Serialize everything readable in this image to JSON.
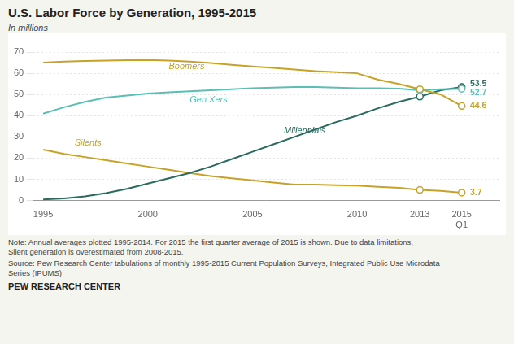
{
  "chart_data": {
    "type": "line",
    "title": "U.S. Labor Force by Generation, 1995-2015",
    "ylabel": "In millions",
    "note": "Note: Annual averages plotted 1995-2014. For 2015 the first quarter average of 2015 is shown. Due to data limitations,\nSilent generation is overestimated from 2008-2015.",
    "source": "Source: Pew Research Center tabulations of monthly 1995-2015 Current Population Surveys, Integrated Public Use Microdata\nSeries (IPUMS)",
    "footer": "PEW RESEARCH CENTER",
    "x": [
      1995,
      1996,
      1997,
      1998,
      1999,
      2000,
      2001,
      2002,
      2003,
      2004,
      2005,
      2006,
      2007,
      2008,
      2009,
      2010,
      2011,
      2012,
      2013,
      2014,
      2015
    ],
    "series": [
      {
        "name": "Boomers",
        "color": "#c8a227",
        "marker": "circle",
        "values": [
          65.0,
          65.5,
          65.8,
          66.0,
          66.2,
          66.3,
          66.0,
          65.5,
          64.8,
          64.0,
          63.2,
          62.5,
          61.8,
          61.0,
          60.5,
          60.0,
          57.0,
          55.0,
          52.5,
          50.0,
          44.6
        ]
      },
      {
        "name": "Gen Xers",
        "color": "#5bbfb5",
        "marker": "circle",
        "values": [
          41.0,
          44.0,
          46.5,
          48.5,
          49.5,
          50.5,
          51.0,
          51.5,
          52.0,
          52.5,
          53.0,
          53.2,
          53.5,
          53.5,
          53.2,
          53.0,
          53.0,
          52.8,
          52.0,
          52.5,
          52.7
        ]
      },
      {
        "name": "Millennials",
        "color": "#2b6a5e",
        "marker": "circle",
        "values": [
          0.5,
          1.0,
          2.0,
          3.5,
          5.5,
          8.0,
          10.5,
          13.0,
          16.0,
          19.5,
          23.0,
          26.5,
          30.0,
          33.5,
          37.0,
          40.0,
          43.5,
          46.5,
          49.0,
          52.0,
          53.5
        ]
      },
      {
        "name": "Silents",
        "color": "#c8a227",
        "marker": "circle",
        "values": [
          24.0,
          22.0,
          20.5,
          19.0,
          17.5,
          16.0,
          14.5,
          13.0,
          11.5,
          10.5,
          9.5,
          8.5,
          7.5,
          7.5,
          7.2,
          7.0,
          6.5,
          6.0,
          5.0,
          4.5,
          3.7
        ]
      }
    ],
    "marked_x": [
      2013,
      2015
    ],
    "xlim": [
      1994.5,
      2016.8
    ],
    "xticks": [
      1995,
      2000,
      2005,
      2010,
      2013,
      {
        "value": 2015,
        "label": "2015\nQ1"
      }
    ],
    "ylim": [
      0,
      75
    ],
    "yticks": [
      0,
      10,
      20,
      30,
      40,
      50,
      60,
      70
    ],
    "grid": "y",
    "annotations": [
      {
        "text": "53.5",
        "x": 2015.4,
        "y": 53.5,
        "color": "#2b6a5e"
      },
      {
        "text": "52.7",
        "x": 2015.4,
        "y": 52.7,
        "color": "#5bbfb5"
      },
      {
        "text": "44.6",
        "x": 2015.4,
        "y": 44.6,
        "color": "#c8a227"
      },
      {
        "text": "3.7",
        "x": 2015.4,
        "y": 3.7,
        "color": "#c8a227"
      },
      {
        "text": "Boomers",
        "x": 2001.0,
        "y": 63.0,
        "color": "#c8a227"
      },
      {
        "text": "Gen Xers",
        "x": 2002.0,
        "y": 47.5,
        "color": "#5bbfb5"
      },
      {
        "text": "Millennials",
        "x": 2006.5,
        "y": 33.0,
        "color": "#2b6a5e"
      },
      {
        "text": "Silents",
        "x": 1996.5,
        "y": 27.0,
        "color": "#c8a227"
      }
    ]
  }
}
